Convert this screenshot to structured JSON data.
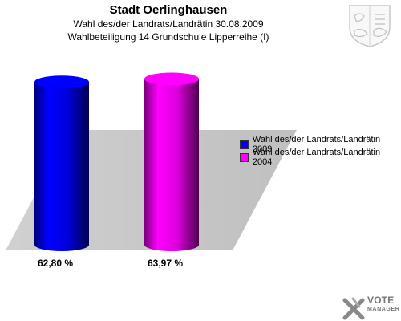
{
  "header": {
    "title": "Stadt Oerlinghausen",
    "subtitle1": "Wahl des/der Landrats/Landrätin 30.08.2009",
    "subtitle2": "Wahlbeteiligung 14 Grundschule Lipperreihe (I)"
  },
  "chart_data": {
    "type": "bar",
    "categories": [
      "Wahl des/der Landrats/Landrätin 2009",
      "Wahl des/der Landrats/Landrätin 2004"
    ],
    "values": [
      62.8,
      63.97
    ],
    "value_labels": [
      "62,80 %",
      "63,97 %"
    ],
    "colors": [
      "#0000ff",
      "#ff00ff"
    ],
    "ylim": [
      0,
      70
    ],
    "grid": false,
    "legend_position": "right",
    "series": [
      {
        "name": "Wahl des/der Landrats/Landrätin 2009",
        "color": "#0000ff"
      },
      {
        "name": "Wahl des/der Landrats/Landrätin 2004",
        "color": "#ff00ff"
      }
    ]
  },
  "logo": {
    "line1": "VOTE",
    "line2": "MANAGER"
  },
  "icons": {
    "crest": "coat-of-arms-icon",
    "logo": "vote-manager-logo-icon"
  }
}
